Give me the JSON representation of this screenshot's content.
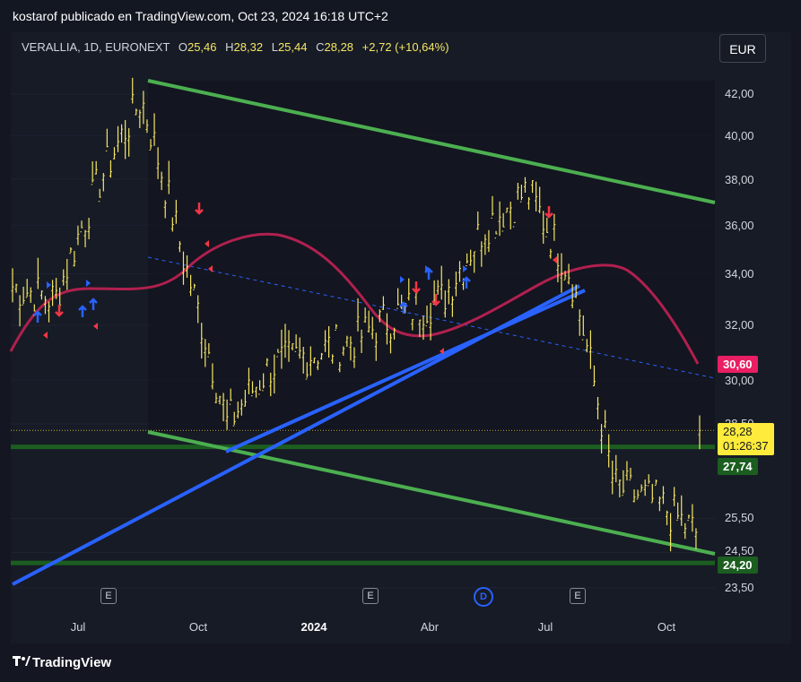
{
  "header": {
    "published_by": "kostarof publicado en TradingView.com, Oct 23, 2024 16:18 UTC+2"
  },
  "legend": {
    "symbol": "VERALLIA, 1D, EURONEXT",
    "open_label": "O",
    "open": "25,46",
    "high_label": "H",
    "high": "28,32",
    "low_label": "L",
    "low": "25,44",
    "close_label": "C",
    "close": "28,28",
    "change": "+2,72 (+10,64%)"
  },
  "currency_button": "EUR",
  "y_axis": {
    "ticks": [
      "42,00",
      "40,00",
      "38,00",
      "36,00",
      "34,00",
      "32,00",
      "30,00",
      "28,50",
      "25,50",
      "24,50",
      "23,50"
    ]
  },
  "x_axis": {
    "ticks": [
      "Jul",
      "Oct",
      "2024",
      "Abr",
      "Jul",
      "Oct"
    ]
  },
  "tags": {
    "moving_average": "30,60",
    "last_price": "28,28",
    "countdown": "01:26:37",
    "support_upper": "27,74",
    "support_lower": "24,20"
  },
  "events": [
    "E",
    "E",
    "E",
    "D",
    "E"
  ],
  "brand": {
    "logo_icon": "tradingview-logo-icon",
    "name": "TradingView"
  },
  "colors": {
    "price": "#f5e663",
    "channel": "#4caf50",
    "support": "#1b5e20",
    "trendline": "#2962ff",
    "ma": "#b0204e",
    "ma_tag": "#e91e63",
    "buy_arrow": "#2962ff",
    "sell_arrow": "#f23645"
  },
  "chart_data": {
    "type": "line",
    "symbol": "VERALLIA",
    "interval": "1D",
    "exchange": "EURONEXT",
    "currency": "EUR",
    "ylim": [
      23.0,
      43.0
    ],
    "scale": "log",
    "x": [
      "2023-06",
      "2023-07",
      "2023-08",
      "2023-09",
      "2023-10",
      "2023-11",
      "2023-12",
      "2024-01",
      "2024-02",
      "2024-03",
      "2024-04",
      "2024-05",
      "2024-06",
      "2024-07",
      "2024-08",
      "2024-09",
      "2024-10"
    ],
    "series": [
      {
        "values": [
          33.5,
          33.0,
          37.8,
          41.8,
          34.5,
          28.5,
          30.5,
          31.0,
          31.5,
          32.5,
          33.0,
          36.0,
          37.5,
          34.0,
          26.5,
          26.0,
          25.0
        ]
      }
    ],
    "last_close": 28.28,
    "moving_average_last": 30.6,
    "support_levels": [
      27.74,
      24.2
    ],
    "grid": true
  }
}
